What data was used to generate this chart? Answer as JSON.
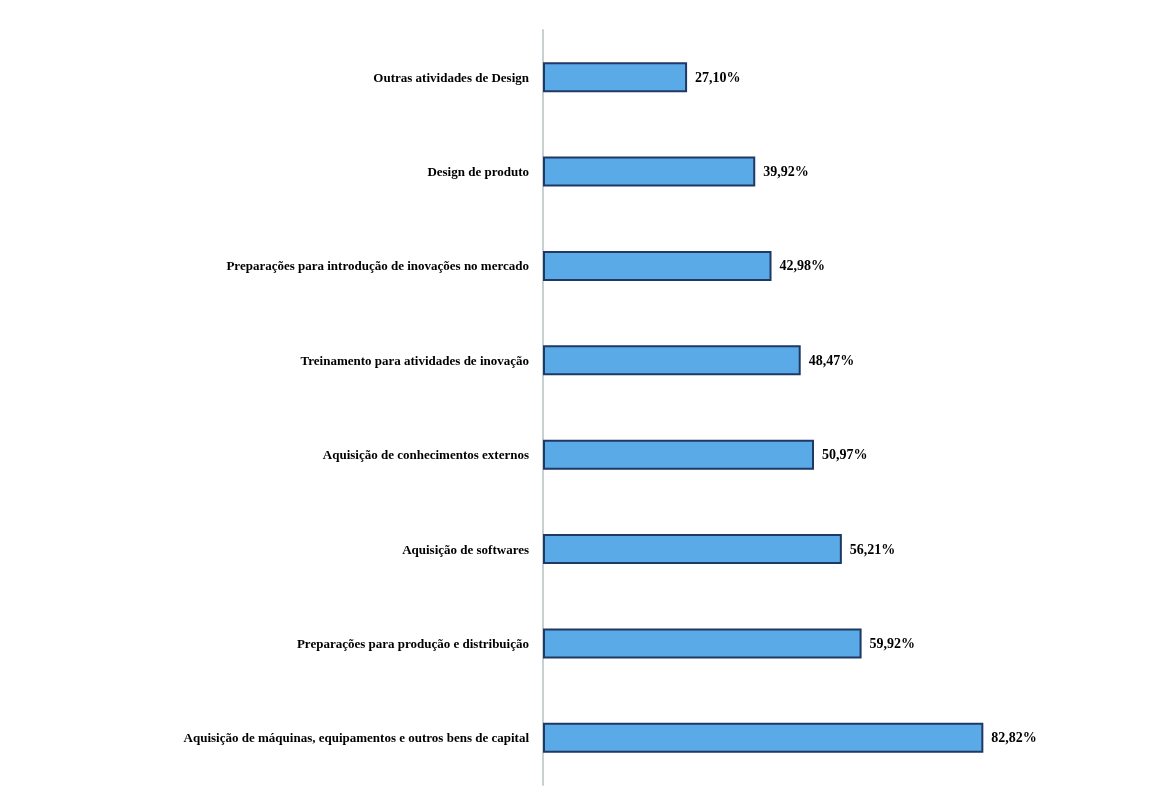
{
  "chart_data": {
    "type": "bar",
    "orientation": "horizontal",
    "categories": [
      "Outras atividades de Design",
      "Design de produto",
      "Preparações para introdução de inovações no mercado",
      "Treinamento para atividades de inovação",
      "Aquisição de conhecimentos externos",
      "Aquisição de softwares",
      "Preparações para produção e distribuição",
      "Aquisição de máquinas, equipamentos e outros bens de capital"
    ],
    "values": [
      27.1,
      39.92,
      42.98,
      48.47,
      50.97,
      56.21,
      59.92,
      82.82
    ],
    "value_labels": [
      "27,10%",
      "39,92%",
      "42,98%",
      "48,47%",
      "50,97%",
      "56,21%",
      "59,92%",
      "82,82%"
    ],
    "color": "#5aaae8",
    "tick_labels": "y"
  }
}
